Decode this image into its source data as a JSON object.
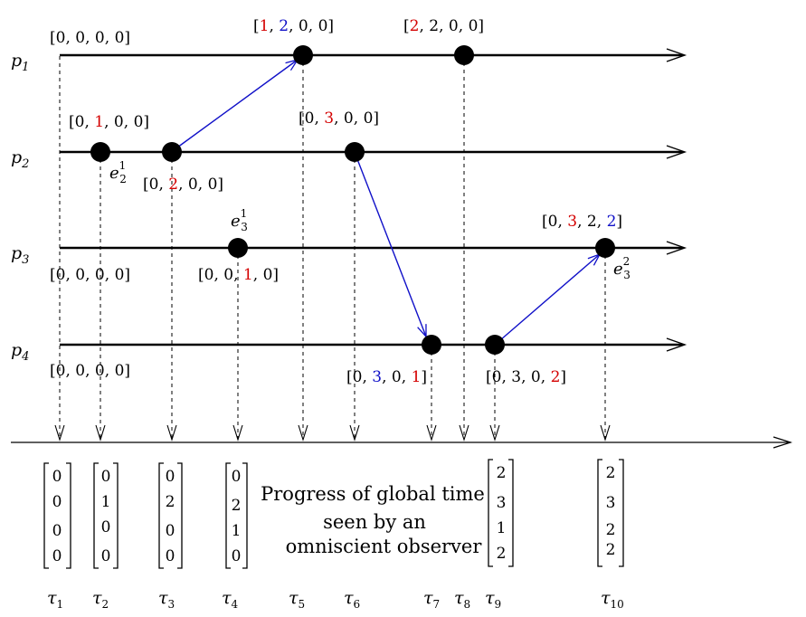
{
  "colors": {
    "black": "#000000",
    "red": "#d40000",
    "blue": "#1010c8"
  },
  "processes": [
    {
      "name": "p",
      "sub": "1"
    },
    {
      "name": "p",
      "sub": "2"
    },
    {
      "name": "p",
      "sub": "3"
    },
    {
      "name": "p",
      "sub": "4"
    }
  ],
  "clocks": {
    "p1_init": [
      [
        "0",
        "k"
      ],
      [
        "0",
        "k"
      ],
      [
        "0",
        "k"
      ],
      [
        "0",
        "k"
      ]
    ],
    "p1_e1": [
      [
        "1",
        "r"
      ],
      [
        "2",
        "b"
      ],
      [
        "0",
        "k"
      ],
      [
        "0",
        "k"
      ]
    ],
    "p1_e2": [
      [
        "2",
        "r"
      ],
      [
        "2",
        "k"
      ],
      [
        "0",
        "k"
      ],
      [
        "0",
        "k"
      ]
    ],
    "p2_e1": [
      [
        "0",
        "k"
      ],
      [
        "1",
        "r"
      ],
      [
        "0",
        "k"
      ],
      [
        "0",
        "k"
      ]
    ],
    "p2_e2": [
      [
        "0",
        "k"
      ],
      [
        "2",
        "r"
      ],
      [
        "0",
        "k"
      ],
      [
        "0",
        "k"
      ]
    ],
    "p2_e3": [
      [
        "0",
        "k"
      ],
      [
        "3",
        "r"
      ],
      [
        "0",
        "k"
      ],
      [
        "0",
        "k"
      ]
    ],
    "p3_init": [
      [
        "0",
        "k"
      ],
      [
        "0",
        "k"
      ],
      [
        "0",
        "k"
      ],
      [
        "0",
        "k"
      ]
    ],
    "p3_e1": [
      [
        "0",
        "k"
      ],
      [
        "0",
        "k"
      ],
      [
        "1",
        "r"
      ],
      [
        "0",
        "k"
      ]
    ],
    "p3_e2": [
      [
        "0",
        "k"
      ],
      [
        "3",
        "r"
      ],
      [
        "2",
        "k"
      ],
      [
        "2",
        "b"
      ]
    ],
    "p4_init": [
      [
        "0",
        "k"
      ],
      [
        "0",
        "k"
      ],
      [
        "0",
        "k"
      ],
      [
        "0",
        "k"
      ]
    ],
    "p4_e1": [
      [
        "0",
        "k"
      ],
      [
        "3",
        "b"
      ],
      [
        "0",
        "k"
      ],
      [
        "1",
        "r"
      ]
    ],
    "p4_e2": [
      [
        "0",
        "k"
      ],
      [
        "3",
        "k"
      ],
      [
        "0",
        "k"
      ],
      [
        "2",
        "r"
      ]
    ]
  },
  "event_labels": {
    "e21": {
      "name": "e",
      "sub": "2",
      "sup": "1"
    },
    "e31": {
      "name": "e",
      "sub": "3",
      "sup": "1"
    },
    "e32": {
      "name": "e",
      "sub": "3",
      "sup": "2"
    }
  },
  "global_vectors": [
    [
      "0",
      "0",
      "0",
      "0"
    ],
    [
      "0",
      "1",
      "0",
      "0"
    ],
    [
      "0",
      "2",
      "0",
      "0"
    ],
    [
      "0",
      "2",
      "1",
      "0"
    ],
    [
      "2",
      "3",
      "1",
      "2"
    ],
    [
      "2",
      "3",
      "2",
      "2"
    ]
  ],
  "caption": [
    "Progress of global time",
    "seen by an",
    "omniscient observer"
  ],
  "taus": [
    {
      "name": "τ",
      "sub": "1"
    },
    {
      "name": "τ",
      "sub": "2"
    },
    {
      "name": "τ",
      "sub": "3"
    },
    {
      "name": "τ",
      "sub": "4"
    },
    {
      "name": "τ",
      "sub": "5"
    },
    {
      "name": "τ",
      "sub": "6"
    },
    {
      "name": "τ",
      "sub": "7"
    },
    {
      "name": "τ",
      "sub": "8"
    },
    {
      "name": "τ",
      "sub": "9"
    },
    {
      "name": "τ",
      "sub": "10"
    }
  ]
}
